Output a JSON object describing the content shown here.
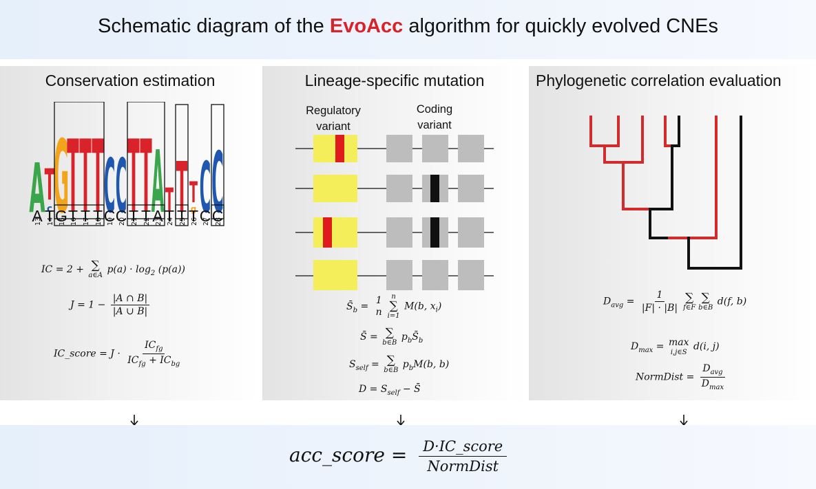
{
  "title": {
    "prefix": "Schematic diagram of the ",
    "highlight": "EvoAcc",
    "suffix": " algorithm for quickly evolved CNEs"
  },
  "panels": {
    "conservation": {
      "title": "Conservation estimation",
      "logo_positions": [
        "13",
        "14",
        "15",
        "16",
        "17",
        "18",
        "19",
        "20",
        "21",
        "22",
        "23",
        "24",
        "25",
        "26",
        "27",
        "28"
      ],
      "sequence": [
        "A",
        "T",
        "G",
        "T",
        "T",
        "T",
        "C",
        "C",
        "T",
        "T",
        "A",
        "T",
        "T",
        "T",
        "C",
        "C"
      ],
      "formulas": {
        "ic": "IC = 2 + Σ_{a∈A} p(a) · log2(p(a))",
        "jaccard": "J = 1 − |A ∩ B| / |A ∪ B|",
        "ic_score": "IC_score = J · IC_fg / (IC_fg + IC_bg)"
      }
    },
    "mutation": {
      "title": "Lineage-specific mutation",
      "regulatory_label": [
        "Regulatory",
        "variant"
      ],
      "coding_label": [
        "Coding",
        "variant"
      ],
      "formulas": {
        "s_b": "S̄_b = (1/n) Σ_{i=1}^{n} M(b, x_i)",
        "s_bar": "S̄ = Σ_{b∈B} p_b S̄_b",
        "s_self": "S_self = Σ_{b∈B} p_b M(b, b)",
        "d": "D = S_self − S̄"
      }
    },
    "phylo": {
      "title": "Phylogenetic correlation evaluation",
      "formulas": {
        "d_avg": "D_avg = 1/(|F|·|B|) Σ_{f∈F} Σ_{b∈B} d(f, b)",
        "d_max": "D_max = max_{i,j∈S} d(i, j)",
        "norm_dist": "NormDist = D_avg / D_max"
      }
    }
  },
  "final_formula": "acc_score = D·IC_score / NormDist",
  "colors": {
    "highlight": "#d9232a",
    "logo_A": "#3aa54a",
    "logo_T": "#d9232a",
    "logo_G": "#f2a51a",
    "logo_C": "#1f57b0",
    "region": "#f4ee5b",
    "variant": "#e01b1b",
    "exon": "#bdbdbd",
    "tree_red": "#d32b2b",
    "tree_black": "#111111"
  }
}
